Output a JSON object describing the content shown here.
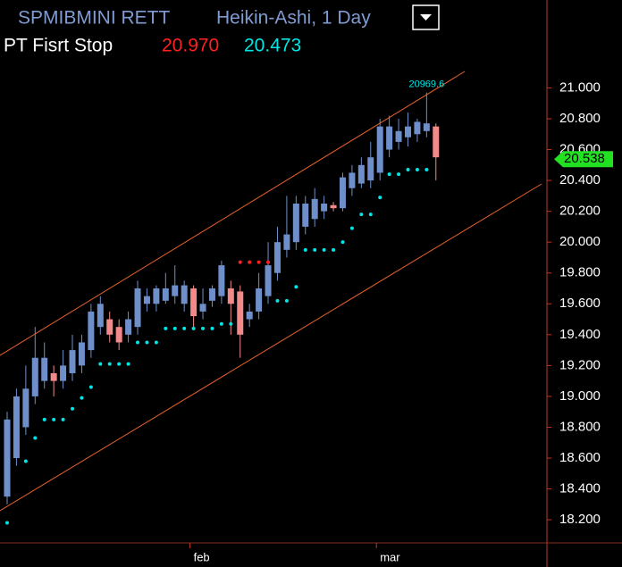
{
  "chart_data": {
    "type": "candlestick",
    "title": "SPMIBMINI RETT",
    "subtitle": "Heikin-Ashi, 1 Day",
    "indicator": {
      "name": "PT Fisrt Stop",
      "values": [
        20.97,
        20.473
      ],
      "value_labels": [
        "20.970",
        "20.473"
      ],
      "colors": [
        "#ff2020",
        "#00e5e5"
      ]
    },
    "annotation": "20969.6",
    "last_price": {
      "value": 20.538,
      "label": "20.538"
    },
    "categories": [
      null,
      null,
      null,
      null,
      null,
      null,
      null,
      null,
      null,
      null,
      null,
      null,
      null,
      null,
      null,
      null,
      null,
      null,
      null,
      null,
      "feb",
      null,
      null,
      null,
      null,
      null,
      null,
      null,
      null,
      null,
      null,
      null,
      null,
      null,
      null,
      null,
      null,
      null,
      null,
      null,
      "mar",
      null,
      null,
      null,
      null,
      null,
      null
    ],
    "open": [
      18.35,
      18.6,
      18.8,
      19.0,
      19.1,
      19.15,
      19.1,
      19.15,
      19.2,
      19.3,
      19.45,
      19.5,
      19.45,
      19.4,
      19.45,
      19.6,
      19.6,
      19.62,
      19.65,
      19.6,
      19.7,
      19.55,
      19.62,
      19.65,
      19.7,
      19.68,
      19.5,
      19.55,
      19.65,
      19.8,
      19.95,
      20.0,
      20.1,
      20.15,
      20.2,
      20.24,
      20.22,
      20.35,
      20.38,
      20.4,
      20.45,
      20.6,
      20.65,
      20.68,
      20.7,
      20.72,
      20.75
    ],
    "high": [
      18.9,
      19.05,
      19.2,
      19.45,
      19.35,
      19.2,
      19.3,
      19.4,
      19.4,
      19.6,
      19.65,
      19.55,
      19.5,
      19.55,
      19.75,
      19.7,
      19.72,
      19.8,
      19.85,
      19.75,
      19.72,
      19.7,
      19.72,
      19.88,
      19.75,
      19.72,
      19.6,
      19.8,
      20.0,
      20.1,
      20.3,
      20.3,
      20.3,
      20.35,
      20.3,
      20.26,
      20.45,
      20.5,
      20.55,
      20.65,
      20.8,
      20.82,
      20.8,
      20.84,
      20.8,
      20.97,
      20.77
    ],
    "low": [
      18.3,
      18.55,
      18.75,
      18.95,
      19.05,
      19.0,
      19.05,
      19.1,
      19.15,
      19.25,
      19.4,
      19.35,
      19.3,
      19.35,
      19.4,
      19.55,
      19.55,
      19.6,
      19.6,
      19.55,
      19.45,
      19.5,
      19.58,
      19.6,
      19.4,
      19.25,
      19.45,
      19.5,
      19.6,
      19.75,
      19.9,
      19.95,
      20.05,
      20.1,
      20.15,
      20.2,
      20.2,
      20.3,
      20.35,
      20.35,
      20.4,
      20.55,
      20.6,
      20.62,
      20.65,
      20.68,
      20.4
    ],
    "close": [
      18.85,
      19.0,
      19.05,
      19.25,
      19.25,
      19.1,
      19.2,
      19.3,
      19.35,
      19.55,
      19.6,
      19.4,
      19.35,
      19.5,
      19.7,
      19.65,
      19.7,
      19.7,
      19.72,
      19.72,
      19.52,
      19.6,
      19.7,
      19.85,
      19.6,
      19.4,
      19.55,
      19.7,
      19.85,
      20.0,
      20.05,
      20.25,
      20.25,
      20.28,
      20.25,
      20.22,
      20.42,
      20.45,
      20.5,
      20.55,
      20.75,
      20.75,
      20.72,
      20.75,
      20.78,
      20.77,
      20.55
    ],
    "up_color": "#6f8fca",
    "down_color": "#f28a8a",
    "stops": {
      "values": [
        18.18,
        null,
        18.58,
        18.73,
        18.85,
        18.85,
        18.85,
        18.92,
        18.99,
        19.06,
        19.21,
        19.21,
        19.21,
        19.21,
        19.35,
        19.35,
        19.35,
        19.44,
        19.44,
        19.44,
        19.44,
        19.44,
        19.44,
        19.47,
        19.47,
        19.87,
        19.87,
        19.87,
        19.87,
        19.62,
        19.62,
        19.71,
        19.95,
        19.95,
        19.95,
        19.95,
        20.0,
        20.09,
        20.18,
        20.18,
        20.29,
        20.44,
        20.44,
        20.47,
        20.47,
        20.47,
        null
      ],
      "colors": [
        "#00e5e5",
        "#00e5e5",
        "#00e5e5",
        "#00e5e5",
        "#00e5e5",
        "#00e5e5",
        "#00e5e5",
        "#00e5e5",
        "#00e5e5",
        "#00e5e5",
        "#00e5e5",
        "#00e5e5",
        "#00e5e5",
        "#00e5e5",
        "#00e5e5",
        "#00e5e5",
        "#00e5e5",
        "#00e5e5",
        "#00e5e5",
        "#00e5e5",
        "#00e5e5",
        "#00e5e5",
        "#00e5e5",
        "#00e5e5",
        "#00e5e5",
        "#ff2020",
        "#ff2020",
        "#ff2020",
        "#ff2020",
        "#00e5e5",
        "#00e5e5",
        "#00e5e5",
        "#00e5e5",
        "#00e5e5",
        "#00e5e5",
        "#00e5e5",
        "#00e5e5",
        "#00e5e5",
        "#00e5e5",
        "#00e5e5",
        "#00e5e5",
        "#00e5e5",
        "#00e5e5",
        "#00e5e5",
        "#00e5e5",
        "#00e5e5",
        "#00e5e5"
      ]
    },
    "ylim": [
      18.05,
      21.57
    ],
    "yticks": [
      {
        "value": 18.2,
        "label": "18.200"
      },
      {
        "value": 18.4,
        "label": "18.400"
      },
      {
        "value": 18.6,
        "label": "18.600"
      },
      {
        "value": 18.8,
        "label": "18.800"
      },
      {
        "value": 19.0,
        "label": "19.000"
      },
      {
        "value": 19.2,
        "label": "19.200"
      },
      {
        "value": 19.4,
        "label": "19.400"
      },
      {
        "value": 19.6,
        "label": "19.600"
      },
      {
        "value": 19.8,
        "label": "19.800"
      },
      {
        "value": 20.0,
        "label": "20.000"
      },
      {
        "value": 20.2,
        "label": "20.200"
      },
      {
        "value": 20.4,
        "label": "20.400"
      },
      {
        "value": 20.6,
        "label": "20.600"
      },
      {
        "value": 20.8,
        "label": "20.800"
      },
      {
        "value": 21.0,
        "label": "21.000"
      }
    ]
  }
}
